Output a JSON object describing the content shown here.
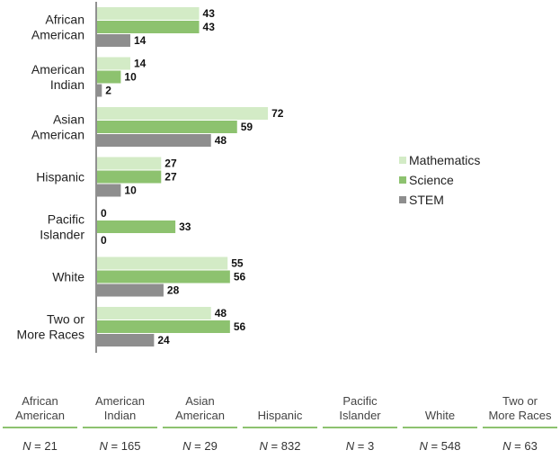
{
  "chart_data": {
    "type": "bar",
    "orientation": "horizontal",
    "categories": [
      [
        "African",
        "American"
      ],
      [
        "American",
        "Indian"
      ],
      [
        "Asian",
        "American"
      ],
      [
        "Hispanic"
      ],
      [
        "Pacific",
        "Islander"
      ],
      [
        "White"
      ],
      [
        "Two or",
        "More Races"
      ]
    ],
    "series": [
      {
        "name": "Mathematics",
        "color": "#d3ebc6",
        "values": [
          43,
          14,
          72,
          27,
          0,
          55,
          48
        ]
      },
      {
        "name": "Science",
        "color": "#8dc26f",
        "values": [
          43,
          10,
          59,
          27,
          33,
          56,
          56
        ]
      },
      {
        "name": "STEM",
        "color": "#8e8e8e",
        "values": [
          14,
          2,
          48,
          10,
          0,
          28,
          24
        ]
      }
    ],
    "xlim": [
      0,
      100
    ],
    "legend_position": "right"
  },
  "n_table": {
    "n_symbol": "N",
    "columns": [
      {
        "label": [
          "African",
          "American"
        ],
        "n": "21"
      },
      {
        "label": [
          "American",
          "Indian"
        ],
        "n": "165"
      },
      {
        "label": [
          "Asian",
          "American"
        ],
        "n": "29"
      },
      {
        "label": [
          "Hispanic"
        ],
        "n": "832"
      },
      {
        "label": [
          "Pacific",
          "Islander"
        ],
        "n": "3"
      },
      {
        "label": [
          "White"
        ],
        "n": "548"
      },
      {
        "label": [
          "Two or",
          "More Races"
        ],
        "n": "63"
      }
    ]
  }
}
